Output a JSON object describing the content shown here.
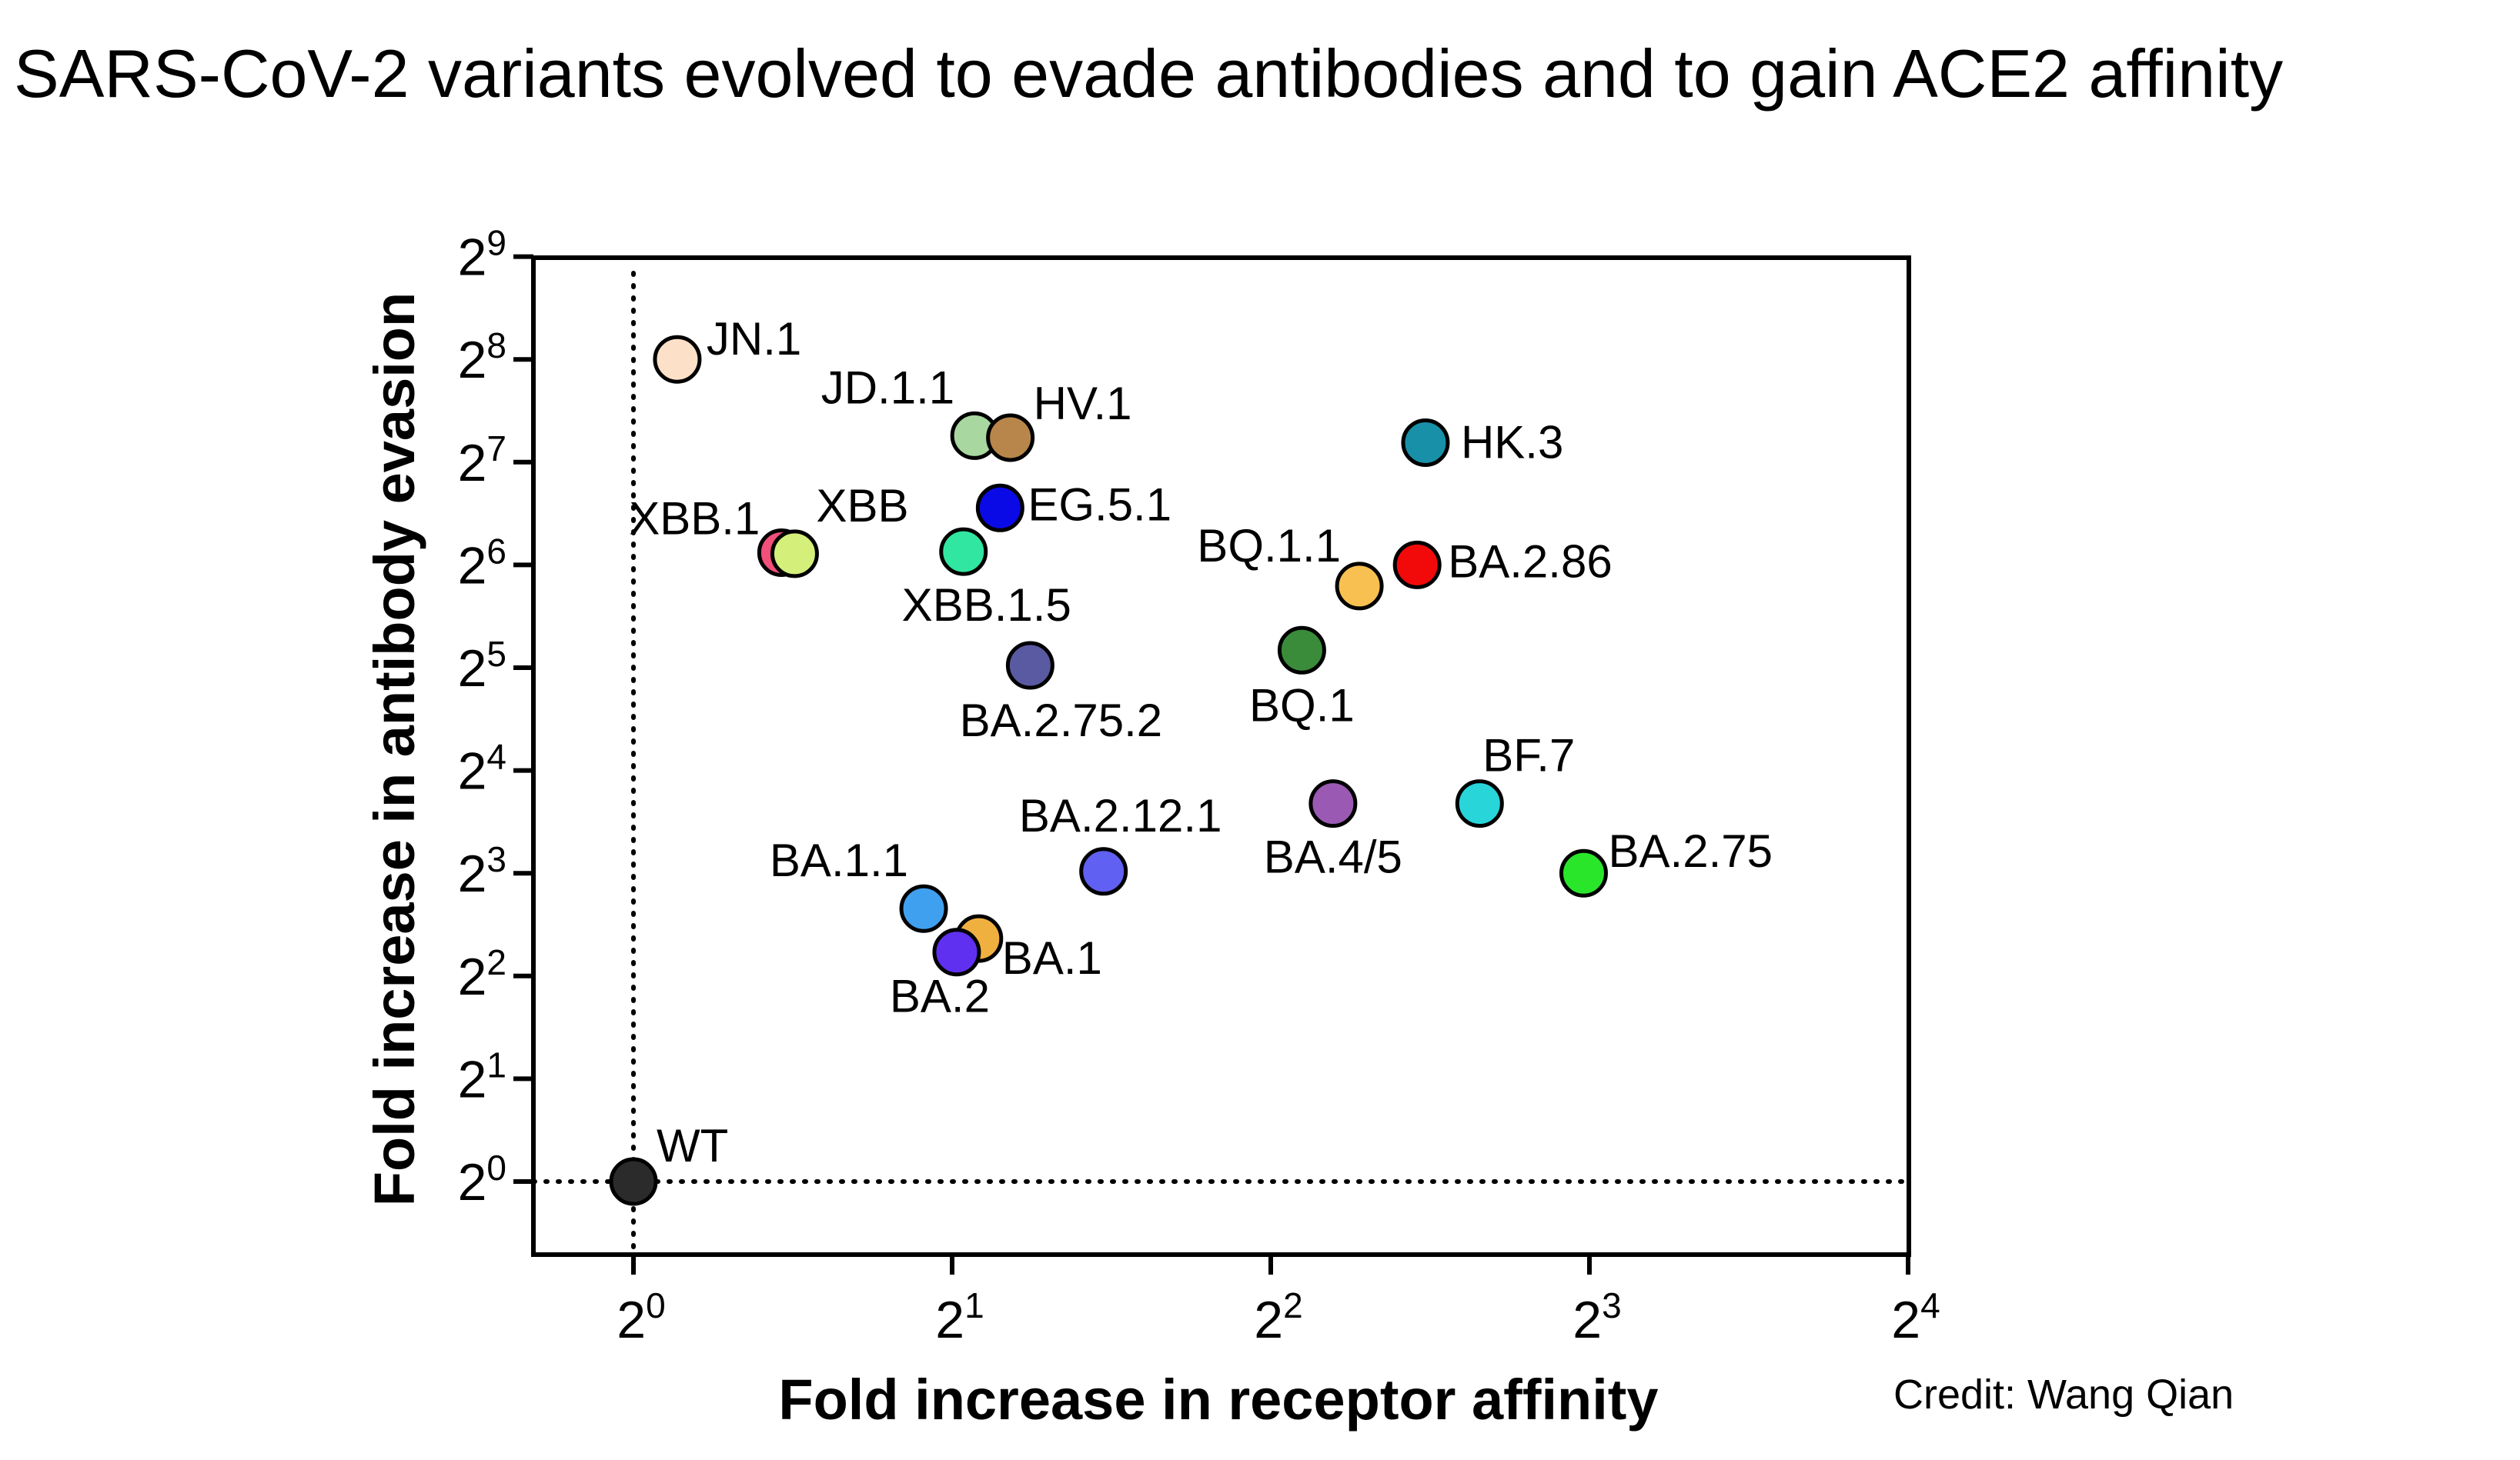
{
  "title": "SARS-CoV-2 variants evolved to evade antibodies and to gain ACE2 affinity",
  "credit": "Credit: Wang Qian",
  "chart_data": {
    "type": "scatter",
    "xlabel": "Fold increase in receptor affinity",
    "ylabel": "Fold increase in antibody evasion",
    "x_scale": "log2",
    "y_scale": "log2",
    "x_ticks": {
      "base": "2",
      "exponents": [
        "0",
        "1",
        "2",
        "3",
        "4"
      ]
    },
    "y_ticks": {
      "base": "2",
      "exponents": [
        "0",
        "1",
        "2",
        "3",
        "4",
        "5",
        "6",
        "7",
        "8",
        "9"
      ]
    },
    "xlim_log2": [
      -0.32,
      4
    ],
    "ylim_log2": [
      -0.72,
      9
    ],
    "reference_lines": {
      "x_log2": 0,
      "y_log2": 0,
      "style": "dotted"
    },
    "grid": false,
    "points": [
      {
        "name": "WT",
        "x": 1.0,
        "y": 1.0,
        "color": "#2b2b2b"
      },
      {
        "name": "JN.1",
        "x": 1.1,
        "y": 256.0,
        "color": "#fde0c8"
      },
      {
        "name": "XBB.1",
        "x": 1.38,
        "y": 69.5,
        "color": "#f0507a"
      },
      {
        "name": "XBB",
        "x": 1.42,
        "y": 69.0,
        "color": "#d4f07a"
      },
      {
        "name": "JD.1.1",
        "x": 2.1,
        "y": 153.0,
        "color": "#a8d8a0"
      },
      {
        "name": "HV.1",
        "x": 2.27,
        "y": 151.0,
        "color": "#b8864a"
      },
      {
        "name": "EG.5.1",
        "x": 2.22,
        "y": 94.0,
        "color": "#0a0ae6"
      },
      {
        "name": "XBB.1.5",
        "x": 2.05,
        "y": 70.0,
        "color": "#30e6a0"
      },
      {
        "name": "BA.2.75.2",
        "x": 2.37,
        "y": 32.5,
        "color": "#5a5aa2"
      },
      {
        "name": "HK.3",
        "x": 5.6,
        "y": 146.0,
        "color": "#1890a8"
      },
      {
        "name": "BA.2.86",
        "x": 5.5,
        "y": 64.0,
        "color": "#f20a0a"
      },
      {
        "name": "BQ.1.1",
        "x": 4.85,
        "y": 55.5,
        "color": "#f8c050"
      },
      {
        "name": "BQ.1",
        "x": 4.28,
        "y": 36.0,
        "color": "#3a8c3a"
      },
      {
        "name": "BF.7",
        "x": 6.3,
        "y": 12.8,
        "color": "#28d6da"
      },
      {
        "name": "BA.4/5",
        "x": 4.58,
        "y": 12.8,
        "color": "#9a5ab4"
      },
      {
        "name": "BA.2.75",
        "x": 7.9,
        "y": 8.0,
        "color": "#2ae62a"
      },
      {
        "name": "BA.2.12.1",
        "x": 2.78,
        "y": 8.1,
        "color": "#6060f2"
      },
      {
        "name": "BA.1.1",
        "x": 1.88,
        "y": 6.3,
        "color": "#40a0f0"
      },
      {
        "name": "BA.1",
        "x": 2.12,
        "y": 5.15,
        "color": "#f0b040"
      },
      {
        "name": "BA.2",
        "x": 2.02,
        "y": 4.7,
        "color": "#6030f0"
      }
    ]
  }
}
